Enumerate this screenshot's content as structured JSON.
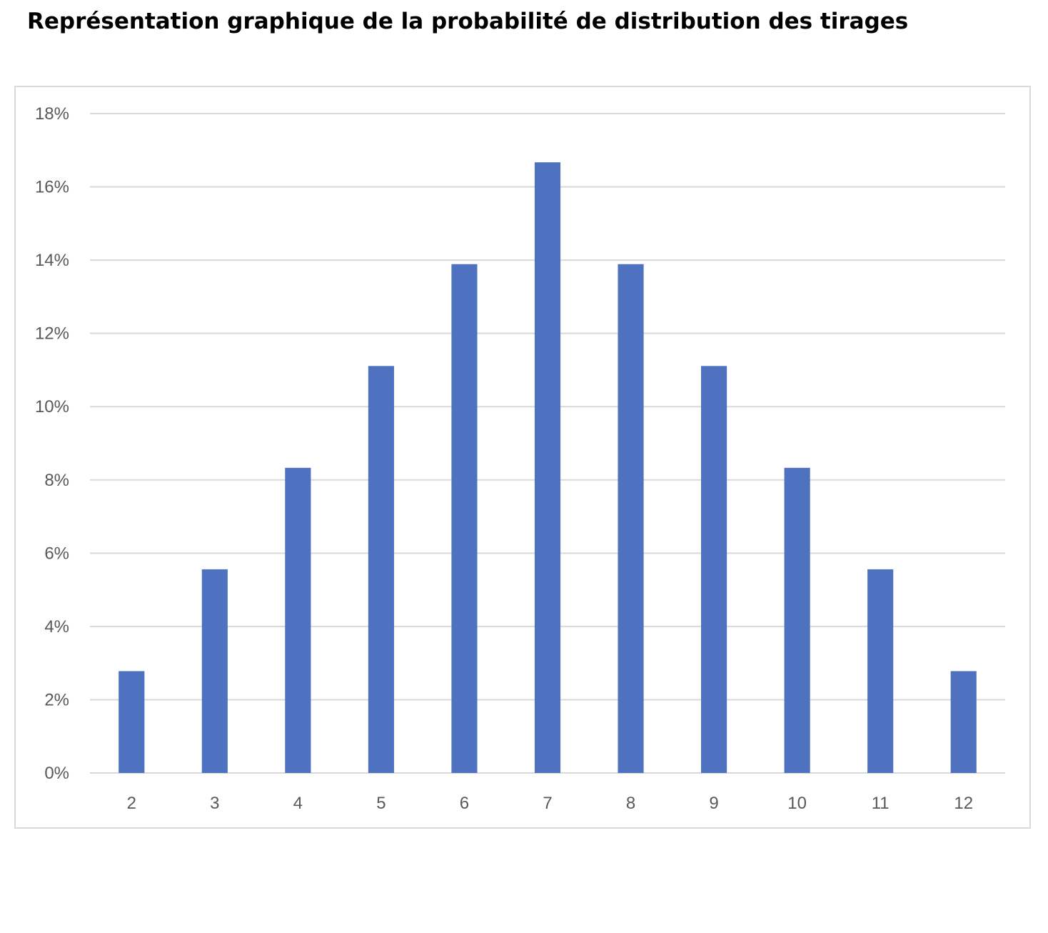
{
  "chart_data": {
    "type": "bar",
    "title": "Représentation graphique de la probabilité de distribution des tirages",
    "xlabel": "",
    "ylabel": "",
    "categories": [
      "2",
      "3",
      "4",
      "5",
      "6",
      "7",
      "8",
      "9",
      "10",
      "11",
      "12"
    ],
    "series": [
      {
        "values": [
          2.78,
          5.56,
          8.33,
          11.11,
          13.89,
          16.67,
          13.89,
          11.11,
          8.33,
          5.56,
          2.78
        ]
      }
    ],
    "ylim": [
      0,
      18
    ],
    "yticks": [
      0,
      2,
      4,
      6,
      8,
      10,
      12,
      14,
      16,
      18
    ],
    "ytick_labels": [
      "0%",
      "2%",
      "4%",
      "6%",
      "8%",
      "10%",
      "12%",
      "14%",
      "16%",
      "18%"
    ],
    "grid": true,
    "legend": "none",
    "colors": {
      "bar": "#4e72bf",
      "grid": "#d9d9d9",
      "tick_text": "#595959"
    }
  }
}
